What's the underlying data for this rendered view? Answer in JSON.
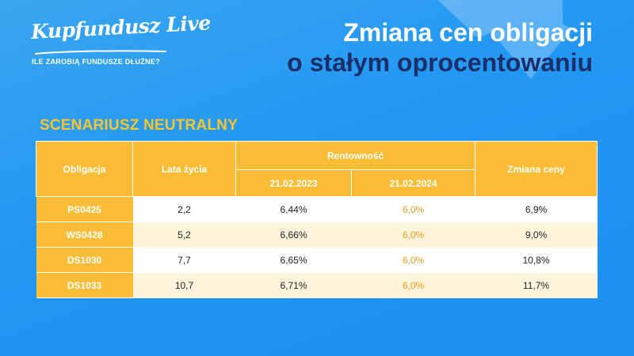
{
  "logo": {
    "brand": "Kupfundusz Live",
    "tagline": "ILE ZAROBIĄ FUNDUSZE DŁUŻNE?"
  },
  "title": {
    "line1": "Zmiana cen obligacji",
    "line2": "o stałym oprocentowaniu"
  },
  "scenario": "SCENARIUSZ NEUTRALNY",
  "table": {
    "headers": {
      "bond": "Obligacja",
      "life": "Lata  życia",
      "yield": "Rentowność",
      "date1": "21.02.2023",
      "date2": "21.02.2024",
      "change": "Zmiana ceny"
    },
    "rows": [
      {
        "bond": "PS0425",
        "life": "2,2",
        "y2023": "6,44%",
        "y2024": "6,0%",
        "change": "6,9%"
      },
      {
        "bond": "WS0428",
        "life": "5,2",
        "y2023": "6,66%",
        "y2024": "6,0%",
        "change": "9,0%"
      },
      {
        "bond": "DS1030",
        "life": "7,7",
        "y2023": "6,65%",
        "y2024": "6,0%",
        "change": "10,8%"
      },
      {
        "bond": "DS1033",
        "life": "10,7",
        "y2023": "6,71%",
        "y2024": "6,0%",
        "change": "11,7%"
      }
    ]
  },
  "colors": {
    "background": "#2196f3",
    "accent": "#fbbd35",
    "title_dark": "#1a2f6a",
    "highlight_text": "#f29a1c"
  }
}
